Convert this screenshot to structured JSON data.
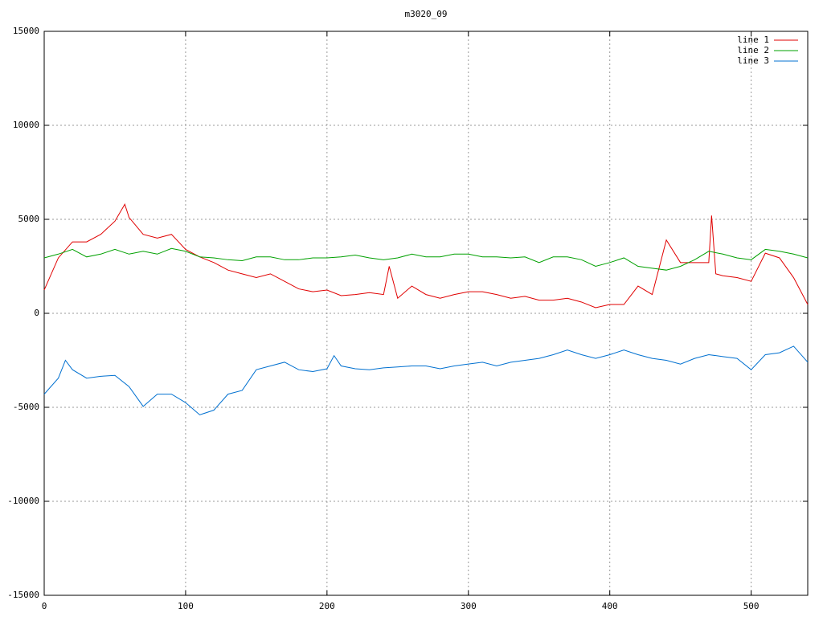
{
  "chart_data": {
    "type": "line",
    "title": "m3020_09",
    "xlim": [
      0,
      540
    ],
    "xticks": [
      0,
      100,
      200,
      300,
      400,
      500
    ],
    "ylim": [
      -15000,
      15000
    ],
    "yticks": [
      -15000,
      -10000,
      -5000,
      0,
      5000,
      10000,
      15000
    ],
    "grid": true,
    "legend": "top-right",
    "series": [
      {
        "name": "line 1",
        "color": "#e00000",
        "x": [
          0,
          10,
          20,
          30,
          40,
          50,
          57,
          60,
          70,
          80,
          90,
          100,
          110,
          120,
          130,
          140,
          150,
          160,
          170,
          180,
          190,
          200,
          210,
          220,
          230,
          240,
          244,
          250,
          260,
          270,
          280,
          290,
          300,
          310,
          320,
          330,
          340,
          350,
          360,
          370,
          380,
          390,
          400,
          410,
          420,
          430,
          440,
          450,
          460,
          470,
          472,
          475,
          480,
          490,
          500,
          510,
          520,
          530,
          540
        ],
        "values": [
          1240,
          2950,
          3800,
          3800,
          4200,
          4900,
          5800,
          5100,
          4200,
          4000,
          4200,
          3400,
          3000,
          2700,
          2300,
          2100,
          1900,
          2100,
          1700,
          1300,
          1150,
          1240,
          940,
          1000,
          1100,
          1000,
          2500,
          800,
          1450,
          1000,
          800,
          1000,
          1150,
          1150,
          1000,
          800,
          900,
          700,
          700,
          800,
          600,
          300,
          470,
          470,
          1450,
          1000,
          3900,
          2700,
          2700,
          2700,
          5200,
          2100,
          2000,
          1900,
          1700,
          3200,
          2950,
          1900,
          470
        ]
      },
      {
        "name": "line 2",
        "color": "#00a000",
        "x": [
          0,
          10,
          20,
          30,
          40,
          50,
          60,
          70,
          80,
          90,
          100,
          110,
          120,
          130,
          140,
          150,
          160,
          170,
          180,
          190,
          200,
          210,
          220,
          230,
          240,
          250,
          260,
          270,
          280,
          290,
          300,
          310,
          320,
          330,
          340,
          350,
          360,
          370,
          380,
          390,
          400,
          410,
          420,
          430,
          440,
          450,
          460,
          470,
          480,
          490,
          500,
          510,
          520,
          530,
          540
        ],
        "values": [
          2950,
          3150,
          3400,
          3000,
          3150,
          3400,
          3150,
          3300,
          3150,
          3450,
          3300,
          3000,
          2950,
          2850,
          2800,
          3000,
          3000,
          2850,
          2850,
          2950,
          2950,
          3000,
          3100,
          2950,
          2850,
          2950,
          3150,
          3000,
          3000,
          3150,
          3150,
          3000,
          3000,
          2950,
          3000,
          2700,
          3000,
          3000,
          2850,
          2500,
          2700,
          2950,
          2500,
          2400,
          2300,
          2500,
          2850,
          3300,
          3150,
          2950,
          2850,
          3400,
          3300,
          3150,
          2950
        ]
      },
      {
        "name": "line 3",
        "color": "#0070d0",
        "x": [
          0,
          10,
          15,
          20,
          30,
          40,
          50,
          60,
          70,
          80,
          90,
          100,
          110,
          120,
          130,
          140,
          150,
          160,
          170,
          180,
          190,
          200,
          205,
          210,
          220,
          230,
          240,
          250,
          260,
          270,
          280,
          290,
          300,
          310,
          320,
          330,
          340,
          350,
          360,
          370,
          380,
          390,
          400,
          410,
          420,
          430,
          440,
          450,
          460,
          470,
          480,
          490,
          500,
          510,
          520,
          530,
          540
        ],
        "values": [
          -4300,
          -3450,
          -2500,
          -3000,
          -3450,
          -3350,
          -3300,
          -3900,
          -4950,
          -4300,
          -4300,
          -4750,
          -5400,
          -5150,
          -4300,
          -4100,
          -3000,
          -2800,
          -2600,
          -3000,
          -3100,
          -2950,
          -2250,
          -2800,
          -2950,
          -3000,
          -2900,
          -2850,
          -2800,
          -2800,
          -2950,
          -2800,
          -2700,
          -2600,
          -2800,
          -2600,
          -2500,
          -2400,
          -2200,
          -1950,
          -2200,
          -2400,
          -2200,
          -1950,
          -2200,
          -2400,
          -2500,
          -2700,
          -2400,
          -2200,
          -2300,
          -2400,
          -3000,
          -2200,
          -2100,
          -1750,
          -2600
        ]
      }
    ]
  }
}
